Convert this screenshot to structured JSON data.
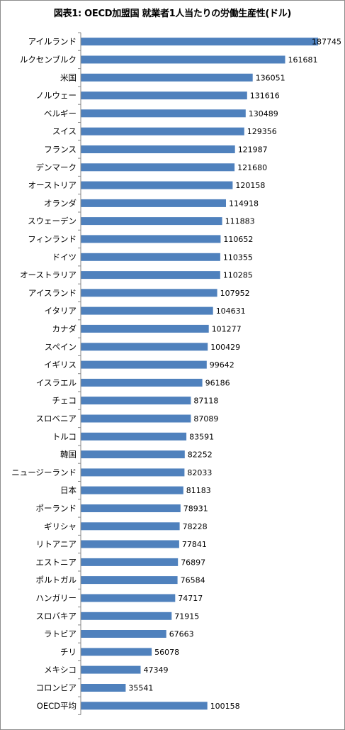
{
  "chart_data": {
    "type": "bar",
    "orientation": "horizontal",
    "title": "図表1: OECD加盟国 就業者1人当たりの労働生産性(ドル)",
    "bar_color": "#4f81bd",
    "categories": [
      "アイルランド",
      "ルクセンブルク",
      "米国",
      "ノルウェー",
      "ベルギー",
      "スイス",
      "フランス",
      "デンマーク",
      "オーストリア",
      "オランダ",
      "スウェーデン",
      "フィンランド",
      "ドイツ",
      "オーストラリア",
      "アイスランド",
      "イタリア",
      "カナダ",
      "スペイン",
      "イギリス",
      "イスラエル",
      "チェコ",
      "スロベニア",
      "トルコ",
      "韓国",
      "ニュージーランド",
      "日本",
      "ポーランド",
      "ギリシャ",
      "リトアニア",
      "エストニア",
      "ポルトガル",
      "ハンガリー",
      "スロバキア",
      "ラトビア",
      "チリ",
      "メキシコ",
      "コロンビア",
      "OECD平均"
    ],
    "values": [
      187745,
      161681,
      136051,
      131616,
      130489,
      129356,
      121987,
      121680,
      120158,
      114918,
      111883,
      110652,
      110355,
      110285,
      107952,
      104631,
      101277,
      100429,
      99642,
      96186,
      87118,
      87089,
      83591,
      82252,
      82033,
      81183,
      78931,
      78228,
      77841,
      76897,
      76584,
      74717,
      71915,
      67663,
      56078,
      47349,
      35541,
      100158
    ],
    "xlim": [
      0,
      190000
    ],
    "grid": false,
    "legend": "none"
  }
}
